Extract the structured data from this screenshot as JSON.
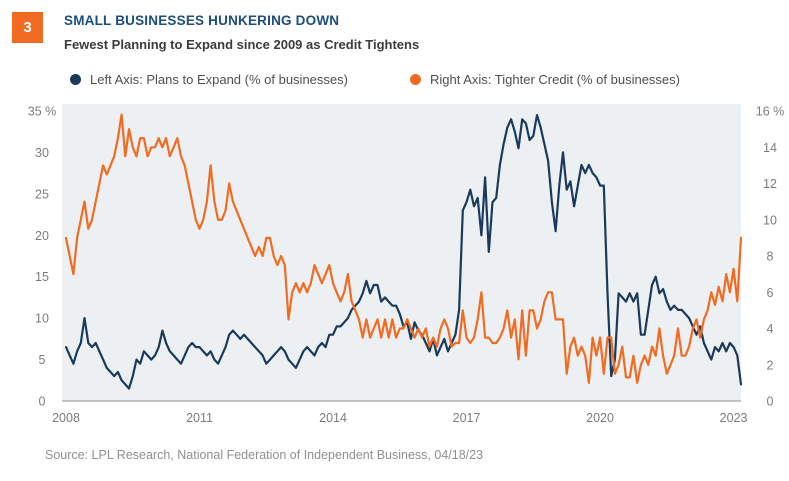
{
  "figure_number": "3",
  "header": {
    "title": "SMALL BUSINESSES HUNKERING DOWN",
    "subtitle": "Fewest Planning to Expand since 2009 as Credit Tightens"
  },
  "legend": [
    {
      "key": "plans_to_expand",
      "label": "Left Axis: Plans to Expand (% of businesses)",
      "color": "#1a3a5c"
    },
    {
      "key": "tighter_credit",
      "label": "Right Axis: Tighter Credit (% of businesses)",
      "color": "#f16c22"
    }
  ],
  "source": "Source: LPL Research, National Federation of Independent Business,  04/18/23",
  "colors": {
    "accent_orange": "#f16c22",
    "line_navy": "#1a3a5c",
    "title_blue": "#1c4d7c",
    "subtitle_gray": "#3b3b3a",
    "legend_text": "#4f4f4f",
    "axis_label_gray": "#7a7c7f",
    "axis_line_gray": "#a6a8ab",
    "plot_background": "#edf0f2",
    "source_gray": "#8e9093"
  },
  "chart_data": {
    "type": "line",
    "frequency": "monthly",
    "x_start": "2008-01",
    "x_end": "2023-03",
    "grid": false,
    "legend_position": "top",
    "x_tick_labels": [
      "2008",
      "2011",
      "2014",
      "2017",
      "2020",
      "2023"
    ],
    "left_axis": {
      "range": [
        0,
        35
      ],
      "ticks": [
        35,
        30,
        25,
        20,
        15,
        10,
        5,
        0
      ],
      "unit": "%"
    },
    "right_axis": {
      "range": [
        0,
        16
      ],
      "ticks": [
        16,
        14,
        12,
        10,
        8,
        6,
        4,
        2,
        0
      ],
      "unit": "%"
    },
    "series": [
      {
        "key": "plans_to_expand",
        "name": "Plans to Expand (% of businesses)",
        "axis": "left",
        "color": "#1a3a5c",
        "values": [
          6.5,
          5.5,
          4.5,
          6,
          7,
          10,
          7,
          6.5,
          7,
          6,
          5,
          4,
          3.5,
          3,
          3.5,
          2.5,
          2,
          1.5,
          3,
          5,
          4.5,
          6,
          5.5,
          5,
          5.5,
          6.5,
          8.5,
          7,
          6,
          5.5,
          5,
          4.5,
          5.5,
          6.5,
          7,
          6.5,
          6.5,
          6,
          5.5,
          6,
          5,
          4.5,
          5.5,
          6.5,
          8,
          8.5,
          8,
          7.5,
          8,
          7.5,
          7,
          6.5,
          6,
          5.5,
          4.5,
          5,
          5.5,
          6,
          6.5,
          6,
          5,
          4.5,
          4,
          5,
          6,
          6.5,
          6,
          5.5,
          6.5,
          7,
          6.5,
          8,
          8,
          9,
          9,
          9.5,
          10,
          11,
          11.5,
          12,
          13,
          14.5,
          13,
          14,
          14,
          12,
          12.5,
          12,
          11.5,
          11.5,
          10.5,
          9,
          9.5,
          7.5,
          9.5,
          8.5,
          8,
          7,
          6,
          7.5,
          5.5,
          6.5,
          7.5,
          6,
          7,
          8,
          11,
          23,
          24,
          25.5,
          23.5,
          24.5,
          20,
          27,
          18,
          24,
          24.5,
          28.5,
          31,
          33,
          34,
          32.5,
          30.5,
          34,
          33.5,
          31.5,
          32,
          34.5,
          33,
          31,
          29,
          24,
          20.5,
          26,
          30,
          25.5,
          26.5,
          23.5,
          26,
          28.5,
          27.5,
          28.5,
          27.5,
          27,
          26,
          26,
          13,
          3,
          5,
          13,
          12.5,
          12,
          13,
          12,
          13,
          8,
          8,
          11,
          14,
          15,
          13,
          13.5,
          12,
          11,
          11.5,
          11,
          11,
          10.5,
          10,
          9,
          8,
          9,
          7,
          6,
          5,
          6.5,
          6,
          7,
          6,
          7,
          6.5,
          5.5,
          2
        ]
      },
      {
        "key": "tighter_credit",
        "name": "Tighter Credit (% of businesses)",
        "axis": "right",
        "color": "#f16c22",
        "values": [
          9,
          8,
          7,
          9,
          10,
          11,
          9.5,
          10,
          11,
          12,
          13,
          12.5,
          13,
          13.5,
          14.5,
          15.8,
          13.5,
          15,
          14,
          13.5,
          14.5,
          14.5,
          13.5,
          14,
          14,
          14.5,
          14,
          14.5,
          13.5,
          14,
          14.5,
          13.5,
          13,
          12,
          11,
          10,
          9.5,
          10,
          11,
          13,
          11,
          10,
          10,
          10.5,
          12,
          11,
          10.5,
          10,
          9.5,
          9,
          8.5,
          8,
          8.5,
          8,
          9,
          9,
          8,
          7.5,
          8,
          7.5,
          4.5,
          6,
          6.5,
          6,
          6.5,
          6,
          6.5,
          7.5,
          7,
          6.5,
          7,
          7.5,
          6.5,
          6,
          5.5,
          6,
          7,
          5.5,
          5,
          4.5,
          3.5,
          4.5,
          3.5,
          4,
          4.5,
          3.5,
          4.5,
          3.5,
          4.5,
          3.5,
          4,
          4,
          4.5,
          4,
          3.5,
          4,
          3.5,
          4,
          3,
          3.5,
          3,
          4,
          4.5,
          4,
          3,
          3.2,
          3.2,
          5,
          3.5,
          3.2,
          3.5,
          4.5,
          6,
          3.5,
          3.5,
          3.2,
          3.2,
          3.5,
          4,
          5,
          3.5,
          4.5,
          2.3,
          5,
          2.5,
          5,
          5,
          4,
          4.5,
          5.5,
          6,
          6,
          4.5,
          4.5,
          4.5,
          1.5,
          3,
          3.5,
          2.5,
          3,
          2.5,
          1,
          3.5,
          2.5,
          3.5,
          1.5,
          3.5,
          3.5,
          1.5,
          2,
          3,
          1.3,
          1.3,
          2.5,
          1,
          2,
          2.5,
          2,
          3,
          2.5,
          4,
          2.5,
          1.5,
          2,
          2.5,
          4,
          2.5,
          2.5,
          3,
          4,
          4.5,
          3.5,
          4.5,
          5,
          6,
          5.3,
          6.3,
          5.5,
          7,
          6,
          7.3,
          5.5,
          9
        ]
      }
    ]
  }
}
